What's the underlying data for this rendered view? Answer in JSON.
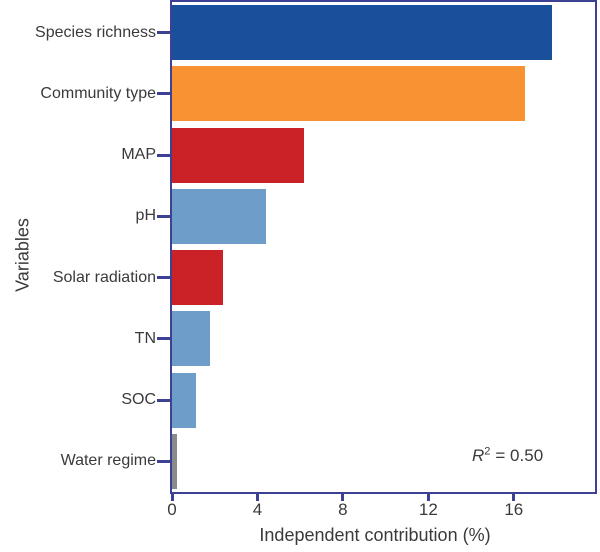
{
  "chart_data": {
    "type": "bar",
    "orientation": "horizontal",
    "title": "",
    "xlabel": "Independent contribution (%)",
    "ylabel": "Variables",
    "categories": [
      "Species richness",
      "Community type",
      "MAP",
      "pH",
      "Solar radiation",
      "TN",
      "SOC",
      "Water regime"
    ],
    "values": [
      17.8,
      16.5,
      6.2,
      4.4,
      2.4,
      1.8,
      1.1,
      0.25
    ],
    "bar_colors": [
      "#1A4F9C",
      "#F79333",
      "#CB2228",
      "#6F9DCA",
      "#CB2228",
      "#6F9DCA",
      "#6F9DCA",
      "#8A8A8A"
    ],
    "xticks": [
      0,
      4,
      8,
      12,
      16
    ],
    "xlim": [
      0,
      19.8
    ],
    "grid": false,
    "legend": null,
    "frame": "top-right-closed",
    "axis_color": "#3C4193",
    "text_color": "#3A3A3A",
    "annotation": {
      "text": "R² = 0.50",
      "variable": "R",
      "superscript": "2",
      "value": "= 0.50"
    }
  }
}
